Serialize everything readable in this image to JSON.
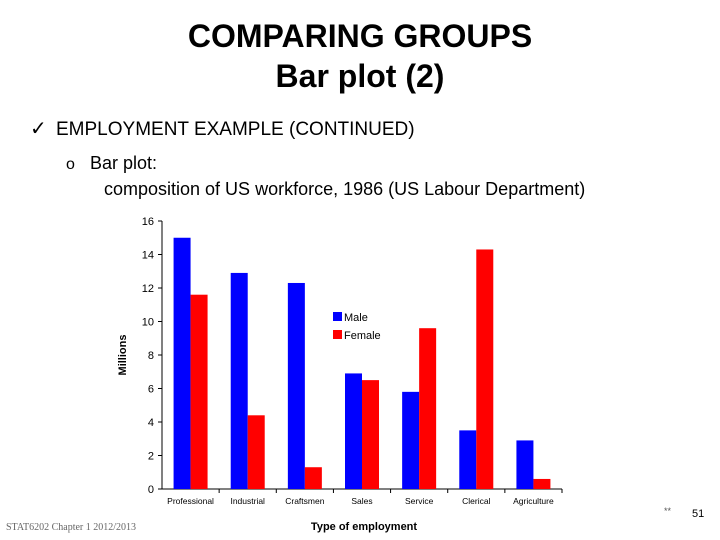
{
  "slide": {
    "title_line1": "COMPARING GROUPS",
    "title_line2": "Bar plot (2)",
    "bullet": "EMPLOYMENT EXAMPLE (CONTINUED)",
    "sub_marker": "o",
    "sub_label": "Bar plot:",
    "sub_text": "composition of US workforce, 1986 (US Labour Department)",
    "footer": "STAT6202 Chapter 1 2012/2013",
    "page_number": "51",
    "corner_mark": "**"
  },
  "chart_data": {
    "type": "bar",
    "categories": [
      "Professional",
      "Industrial",
      "Craftsmen",
      "Sales",
      "Service",
      "Clerical",
      "Agriculture"
    ],
    "series": [
      {
        "name": "Male",
        "color": "#0000ff",
        "values": [
          15.0,
          12.9,
          12.3,
          6.9,
          5.8,
          3.5,
          2.9
        ]
      },
      {
        "name": "Female",
        "color": "#ff0000",
        "values": [
          11.6,
          4.4,
          1.3,
          6.5,
          9.6,
          14.3,
          0.6
        ]
      }
    ],
    "title": "",
    "xlabel": "Type of employment",
    "ylabel": "Millions",
    "ylim": [
      0,
      16
    ],
    "yticks": [
      0,
      2,
      4,
      6,
      8,
      10,
      12,
      14,
      16
    ],
    "grid": false,
    "legend": "center"
  }
}
